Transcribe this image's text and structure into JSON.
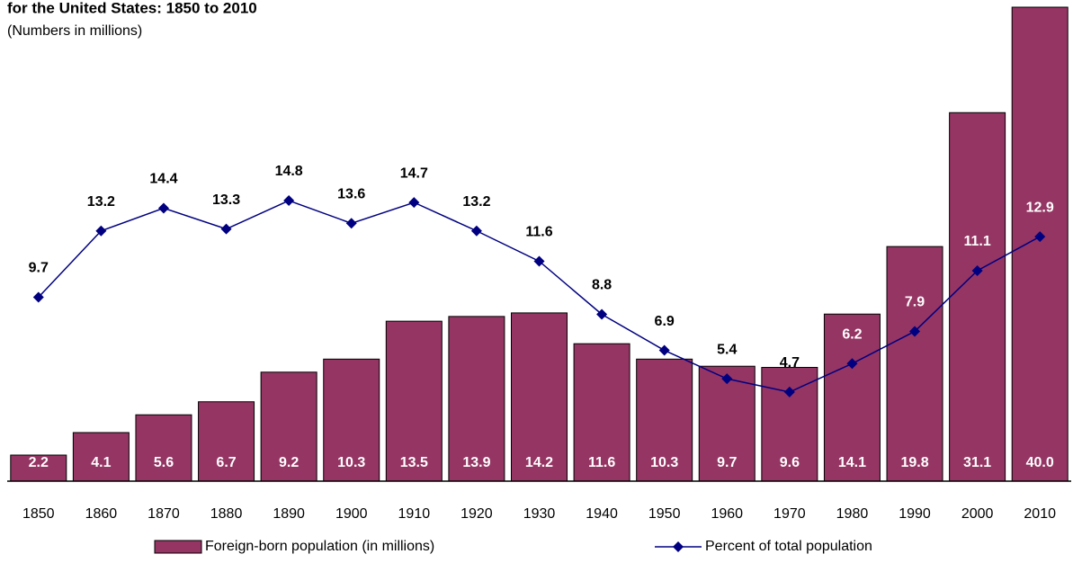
{
  "chart_data": {
    "type": "bar",
    "title": "for the United States: 1850 to 2010",
    "subtitle": "(Numbers in millions)",
    "categories": [
      "1850",
      "1860",
      "1870",
      "1880",
      "1890",
      "1900",
      "1910",
      "1920",
      "1930",
      "1940",
      "1950",
      "1960",
      "1970",
      "1980",
      "1990",
      "2000",
      "2010"
    ],
    "ylim": [
      0,
      40
    ],
    "y2lim": [
      0,
      25
    ],
    "series": [
      {
        "name": "Foreign-born population (in millions)",
        "type": "bar",
        "color": "#953563",
        "values": [
          2.2,
          4.1,
          5.6,
          6.7,
          9.2,
          10.3,
          13.5,
          13.9,
          14.2,
          11.6,
          10.3,
          9.7,
          9.6,
          14.1,
          19.8,
          31.1,
          40
        ],
        "value_labels": [
          "2.2",
          "4.1",
          "5.6",
          "6.7",
          "9.2",
          "10.3",
          "13.5",
          "13.9",
          "14.2",
          "11.6",
          "10.3",
          "9.7",
          "9.6",
          "14.1",
          "19.8",
          "31.1",
          "40.0"
        ]
      },
      {
        "name": "Percent of total population",
        "type": "line",
        "axis": "y2",
        "color": "#000080",
        "values": [
          9.7,
          13.2,
          14.4,
          13.3,
          14.8,
          13.6,
          14.7,
          13.2,
          11.6,
          8.8,
          6.9,
          5.4,
          4.7,
          6.2,
          7.9,
          11.1,
          12.9
        ]
      }
    ]
  }
}
